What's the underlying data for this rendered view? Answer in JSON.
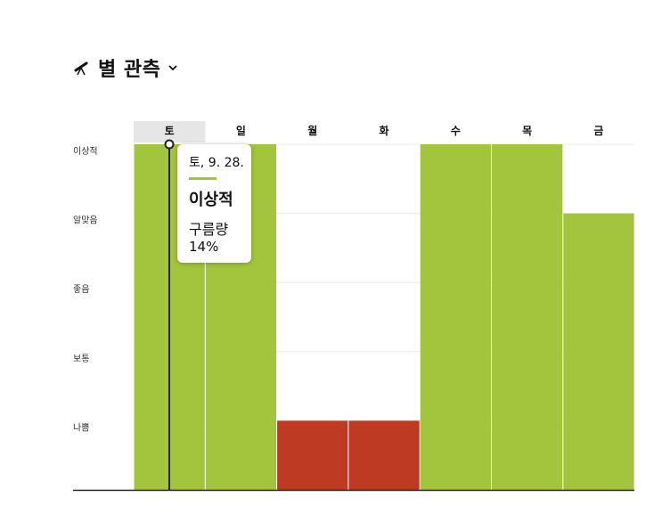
{
  "header": {
    "icon": "telescope-icon",
    "title": "별 관측",
    "chevron": "chevron-down-icon"
  },
  "tooltip": {
    "date": "토, 9. 28.",
    "level": "이상적",
    "metric_label": "구름량",
    "metric_value": "14%"
  },
  "colors": {
    "good": "#a3c53d",
    "bad": "#bf3a22",
    "selected_header_bg": "#e6e6e6",
    "marker": "#222222"
  },
  "chart_data": {
    "type": "bar",
    "categories": [
      "토",
      "일",
      "월",
      "화",
      "수",
      "목",
      "금"
    ],
    "y_levels": [
      "나쁨",
      "보통",
      "좋음",
      "알맞음",
      "이상적"
    ],
    "values": [
      5,
      5,
      1,
      1,
      5,
      5,
      4
    ],
    "ylim": [
      0,
      5
    ],
    "selected_index": 0,
    "grid": true
  }
}
